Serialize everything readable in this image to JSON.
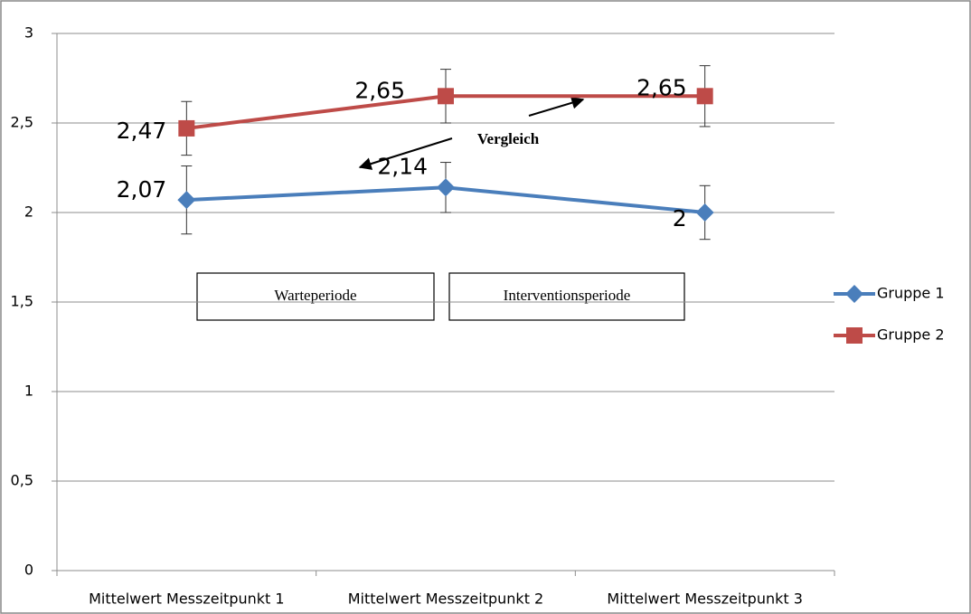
{
  "chart_data": {
    "type": "line",
    "categories": [
      "Mittelwert Messzeitpunkt 1",
      "Mittelwert Messzeitpunkt 2",
      "Mittelwert Messzeitpunkt 3"
    ],
    "series": [
      {
        "name": "Gruppe 1",
        "color": "#4a7ebb",
        "marker": "diamond",
        "values": [
          2.07,
          2.14,
          2
        ],
        "value_labels": [
          "2,07",
          "2,14",
          "2"
        ],
        "errors": [
          0.19,
          0.14,
          0.15
        ]
      },
      {
        "name": "Gruppe 2",
        "color": "#be4b48",
        "marker": "square",
        "values": [
          2.47,
          2.65,
          2.65
        ],
        "value_labels": [
          "2,47",
          "2,65",
          "2,65"
        ],
        "errors": [
          0.15,
          0.15,
          0.17
        ]
      }
    ],
    "ylim": [
      0,
      3
    ],
    "yticks": [
      0,
      {
        "value": 0.5,
        "label": "0,5"
      },
      1,
      {
        "value": 1.5,
        "label": "1,5"
      },
      2,
      {
        "value": 2.5,
        "label": "2,5"
      },
      3
    ],
    "grid": true,
    "legend": "right",
    "annotations": [
      "Warteperiode",
      "Interventionsperiode",
      "Vergleich"
    ]
  }
}
